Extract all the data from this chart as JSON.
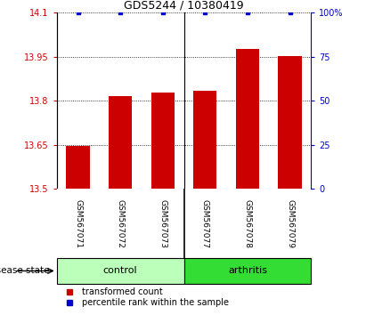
{
  "title": "GDS5244 / 10380419",
  "samples": [
    "GSM567071",
    "GSM567072",
    "GSM567073",
    "GSM567077",
    "GSM567078",
    "GSM567079"
  ],
  "transformed_counts": [
    13.645,
    13.815,
    13.828,
    13.835,
    13.975,
    13.952
  ],
  "percentile_ranks": [
    100,
    100,
    100,
    100,
    100,
    100
  ],
  "ylim_left": [
    13.5,
    14.1
  ],
  "ylim_right": [
    0,
    100
  ],
  "yticks_left": [
    13.5,
    13.65,
    13.8,
    13.95,
    14.1
  ],
  "yticks_right": [
    0,
    25,
    50,
    75,
    100
  ],
  "ytick_labels_left": [
    "13.5",
    "13.65",
    "13.8",
    "13.95",
    "14.1"
  ],
  "ytick_labels_right": [
    "0",
    "25",
    "50",
    "75",
    "100%"
  ],
  "bar_color": "#cc0000",
  "dot_color": "#0000cc",
  "control_color": "#bbffbb",
  "arthritis_color": "#33dd33",
  "sample_box_color": "#c8c8c8",
  "disease_state_label": "disease state",
  "control_label": "control",
  "arthritis_label": "arthritis",
  "legend_bar_label": "transformed count",
  "legend_dot_label": "percentile rank within the sample",
  "n_control": 3,
  "n_arthritis": 3
}
